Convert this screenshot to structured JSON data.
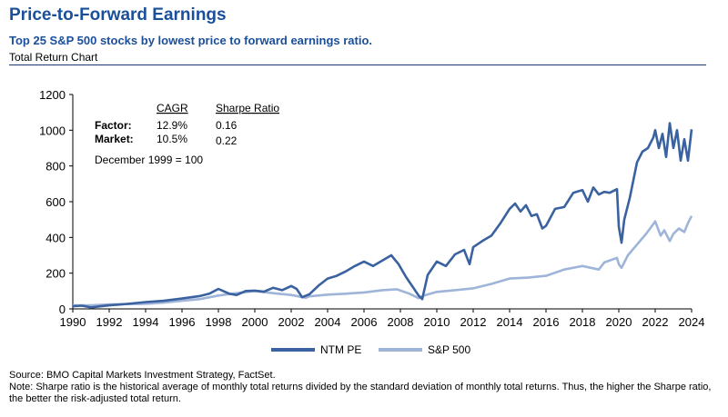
{
  "header": {
    "title": "Price-to-Forward Earnings",
    "subtitle": "Top 25 S&P 500 stocks by lowest price to forward earnings ratio.",
    "chart_type_label": "Total Return Chart"
  },
  "stats_table": {
    "col_headers": [
      "CAGR",
      "Sharpe Ratio"
    ],
    "rows": [
      {
        "label": "Factor:",
        "cagr": "12.9%",
        "sharpe": "0.16"
      },
      {
        "label": "Market:",
        "cagr": "10.5%",
        "sharpe": "0.22"
      }
    ],
    "note": "December 1999 = 100"
  },
  "footer": {
    "source": "Source: BMO Capital Markets Investment Strategy, FactSet.",
    "note": "Note: Sharpe ratio is the historical average of monthly total returns divided by the standard deviation of monthly total returns. Thus, the higher the Sharpe ratio, the better the risk-adjusted total return."
  },
  "colors": {
    "title": "#1a4f9c",
    "ntm_pe": "#3a62a0",
    "sp500": "#9fb4d9",
    "axis": "#000000"
  },
  "chart_data": {
    "type": "line",
    "title": "Total Return Chart",
    "xlabel": "",
    "ylabel": "",
    "xlim": [
      1990,
      2024
    ],
    "ylim": [
      0,
      1200
    ],
    "y_ticks": [
      0,
      200,
      400,
      600,
      800,
      1000,
      1200
    ],
    "x_ticks": [
      1990,
      1992,
      1994,
      1996,
      1998,
      2000,
      2002,
      2004,
      2006,
      2008,
      2010,
      2012,
      2014,
      2016,
      2018,
      2020,
      2022,
      2024
    ],
    "grid": false,
    "legend_position": "bottom-center",
    "series": [
      {
        "name": "NTM PE",
        "color": "#3a62a0",
        "x": [
          1990,
          1990.5,
          1991,
          1991.5,
          1992,
          1993,
          1994,
          1995,
          1996,
          1997,
          1997.5,
          1998,
          1998.3,
          1998.6,
          1999,
          1999.5,
          2000,
          2000.5,
          2001,
          2001.5,
          2002,
          2002.3,
          2002.6,
          2002.9,
          2003,
          2003.5,
          2004,
          2004.5,
          2005,
          2005.5,
          2006,
          2006.5,
          2007,
          2007.5,
          2007.9,
          2008.3,
          2008.7,
          2009.0,
          2009.2,
          2009.5,
          2010,
          2010.5,
          2011,
          2011.5,
          2011.8,
          2012,
          2012.5,
          2013,
          2013.5,
          2014,
          2014.3,
          2014.6,
          2014.9,
          2015.2,
          2015.5,
          2015.8,
          2016,
          2016.5,
          2017,
          2017.5,
          2018,
          2018.3,
          2018.6,
          2018.9,
          2019.2,
          2019.5,
          2019.9,
          2020.0,
          2020.15,
          2020.3,
          2020.6,
          2021,
          2021.3,
          2021.6,
          2021.9,
          2022.0,
          2022.2,
          2022.4,
          2022.6,
          2022.8,
          2023.0,
          2023.2,
          2023.4,
          2023.6,
          2023.8,
          2024.0
        ],
        "values": [
          15,
          18,
          8,
          14,
          20,
          28,
          38,
          45,
          58,
          72,
          85,
          112,
          98,
          85,
          78,
          100,
          102,
          96,
          118,
          105,
          128,
          112,
          65,
          78,
          82,
          130,
          170,
          185,
          210,
          240,
          265,
          240,
          270,
          300,
          250,
          180,
          120,
          75,
          55,
          190,
          265,
          240,
          305,
          330,
          250,
          345,
          380,
          410,
          480,
          560,
          590,
          545,
          580,
          520,
          530,
          450,
          465,
          560,
          570,
          650,
          665,
          600,
          680,
          640,
          655,
          650,
          670,
          460,
          370,
          500,
          620,
          820,
          880,
          900,
          960,
          1000,
          900,
          980,
          850,
          1040,
          900,
          1000,
          830,
          950,
          830,
          1005
        ]
      },
      {
        "name": "S&P 500",
        "color": "#9fb4d9",
        "x": [
          1990,
          1991,
          1992,
          1993,
          1994,
          1995,
          1996,
          1997,
          1998,
          1999,
          2000,
          2001,
          2002,
          2002.8,
          2003,
          2004,
          2005,
          2006,
          2007,
          2007.8,
          2008.5,
          2009.0,
          2009.3,
          2010,
          2011,
          2012,
          2013,
          2014,
          2015,
          2016,
          2017,
          2018,
          2018.9,
          2019.2,
          2019.9,
          2020.0,
          2020.15,
          2020.5,
          2021,
          2021.5,
          2021.9,
          2022.0,
          2022.3,
          2022.5,
          2022.8,
          2023.0,
          2023.3,
          2023.6,
          2023.8,
          2024.0
        ],
        "values": [
          20,
          20,
          25,
          27,
          28,
          35,
          45,
          55,
          75,
          88,
          100,
          88,
          78,
          62,
          70,
          80,
          85,
          92,
          105,
          110,
          85,
          60,
          75,
          95,
          105,
          115,
          140,
          170,
          175,
          185,
          220,
          240,
          220,
          260,
          285,
          250,
          230,
          300,
          360,
          420,
          475,
          490,
          410,
          440,
          380,
          420,
          450,
          430,
          480,
          520
        ]
      }
    ]
  }
}
